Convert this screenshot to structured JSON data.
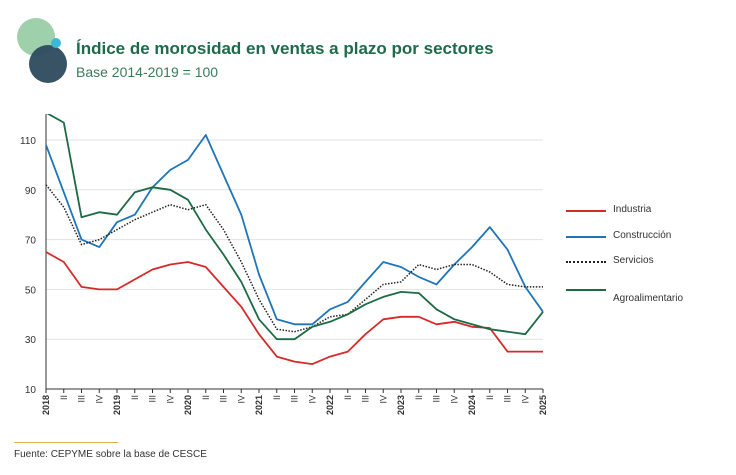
{
  "header": {
    "title": "Índice de morosidad en ventas a plazo por sectores",
    "subtitle": "Base 2014-2019 = 100"
  },
  "logo": {
    "icon": "overlapping-circles-logo",
    "colors": [
      "#8dc89e",
      "#2d4a5e",
      "#3fb8d8"
    ]
  },
  "footer": {
    "source": "Fuente: CEPYME sobre la base de CESCE"
  },
  "chart_data": {
    "type": "line",
    "x": [
      "2018",
      "II",
      "III",
      "IV",
      "2019",
      "II",
      "III",
      "IV",
      "2020",
      "II",
      "III",
      "IV",
      "2021",
      "II",
      "III",
      "IV",
      "2022",
      "II",
      "III",
      "IV",
      "2023",
      "II",
      "III",
      "IV",
      "2024",
      "II",
      "III",
      "IV",
      "2025"
    ],
    "y_ticks": [
      "10",
      "30",
      "50",
      "70",
      "90",
      "110"
    ],
    "ylim": [
      10,
      120
    ],
    "grid": true,
    "legend_position": "right",
    "series": [
      {
        "name": "Industria",
        "color": "#d62a2a",
        "style": "solid",
        "values": [
          65,
          61,
          51,
          50,
          50,
          54,
          58,
          60,
          61,
          59,
          51,
          43,
          32,
          23,
          21,
          20,
          23,
          25,
          32,
          38,
          39,
          39,
          36,
          37,
          35,
          34.5,
          25,
          25,
          25
        ]
      },
      {
        "name": "Construcción",
        "color": "#1f75b8",
        "style": "solid",
        "values": [
          108,
          89,
          70,
          67,
          77,
          80,
          91,
          98,
          102,
          112,
          96,
          80,
          56,
          38,
          36,
          36,
          42,
          45,
          53,
          61,
          59,
          55,
          52,
          60,
          67,
          75,
          66,
          51,
          41
        ]
      },
      {
        "name": "Servicios",
        "color": "#222222",
        "style": "dotted",
        "values": [
          92,
          83,
          68,
          70,
          74,
          78,
          81,
          84,
          82,
          84,
          74,
          61,
          46,
          34,
          33,
          35,
          39,
          40,
          46,
          52,
          53,
          60,
          58,
          60,
          60,
          57,
          52,
          51,
          51
        ]
      },
      {
        "name": "Agroalimentario",
        "color": "#1c6b45",
        "style": "solid",
        "values": [
          121,
          117,
          79,
          81,
          80,
          89,
          91,
          90,
          86,
          74,
          64,
          53,
          38,
          30,
          30,
          35,
          37,
          40,
          44,
          47,
          49,
          48.5,
          42,
          38,
          36,
          34,
          33,
          32,
          41
        ]
      }
    ]
  }
}
